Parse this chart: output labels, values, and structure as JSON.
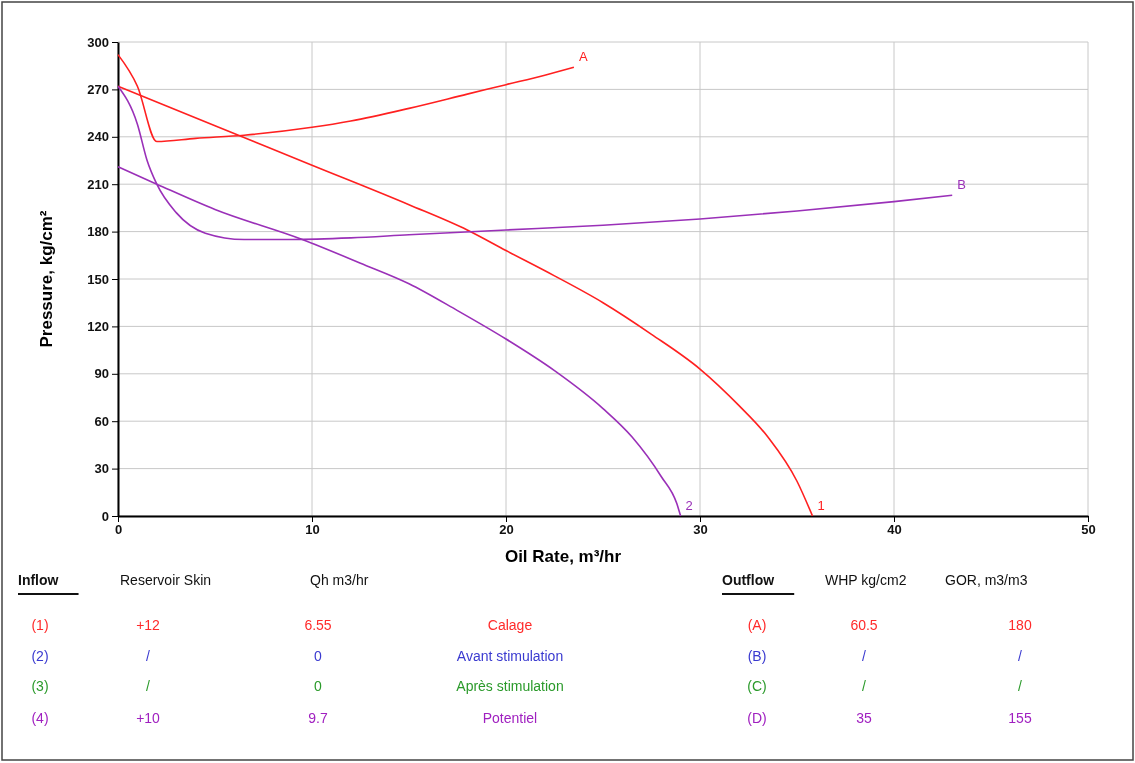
{
  "chart_data": {
    "type": "line",
    "xlabel": "Oil Rate, m³/hr",
    "ylabel": "Pressure, kg/cm²",
    "xlim": [
      0,
      50
    ],
    "xticks": [
      0,
      10,
      20,
      30,
      40,
      50
    ],
    "ylim": [
      0,
      300
    ],
    "yticks": [
      0,
      30,
      60,
      90,
      120,
      150,
      180,
      210,
      240,
      270,
      300
    ],
    "grid": true,
    "marker": "none",
    "line_style": "solid",
    "series": [
      {
        "name": "1",
        "color": "#ff2020",
        "x": [
          0,
          5,
          10,
          15,
          18,
          20,
          22.5,
          25,
          27.5,
          30,
          32,
          33.5,
          35,
          35.8
        ],
        "values": [
          272,
          247,
          222,
          197,
          181,
          168,
          152,
          135,
          115,
          93,
          70,
          50,
          22,
          0
        ]
      },
      {
        "name": "2",
        "color": "#9a30b8",
        "x": [
          0,
          2,
          5,
          9.5,
          12.5,
          15,
          17.5,
          20,
          22.5,
          25,
          26.5,
          28,
          28.8,
          29
        ],
        "values": [
          221,
          210,
          194,
          175,
          160,
          147,
          130,
          112,
          92,
          68,
          50,
          25,
          8,
          0
        ]
      },
      {
        "name": "A",
        "color": "#ff2020",
        "x": [
          0,
          1,
          2,
          4,
          6.5,
          10,
          12,
          15,
          18,
          20,
          22,
          23.5
        ],
        "values": [
          292,
          272,
          237,
          239,
          241,
          246,
          250,
          258,
          267,
          273,
          279,
          284
        ]
      },
      {
        "name": "B",
        "color": "#9a30b8",
        "x": [
          0,
          1,
          1.5,
          2,
          3,
          4.5,
          6.5,
          9,
          12,
          15,
          20,
          25,
          30,
          35,
          40,
          43
        ],
        "values": [
          272,
          248,
          225,
          210,
          192,
          179,
          175,
          175,
          176,
          178,
          181,
          184,
          188,
          193,
          199,
          203
        ]
      }
    ],
    "annotations": [
      "Inflow",
      "Reservoir Skin",
      "Qh m3/hr",
      "Outflow",
      "WHP  kg/cm2",
      "GOR, m3/m3",
      "(1)",
      "+12",
      "6.55",
      "Calage",
      "(A)",
      "60.5",
      "180",
      "(2)",
      "/",
      "0",
      "Avant stimulation",
      "(B)",
      "/",
      "/",
      "(3)",
      "/",
      "0",
      "Après stimulation",
      "(C)",
      "/",
      "/",
      "(4)",
      "+10",
      "9.7",
      "Potentiel",
      "(D)",
      "35",
      "155"
    ]
  }
}
